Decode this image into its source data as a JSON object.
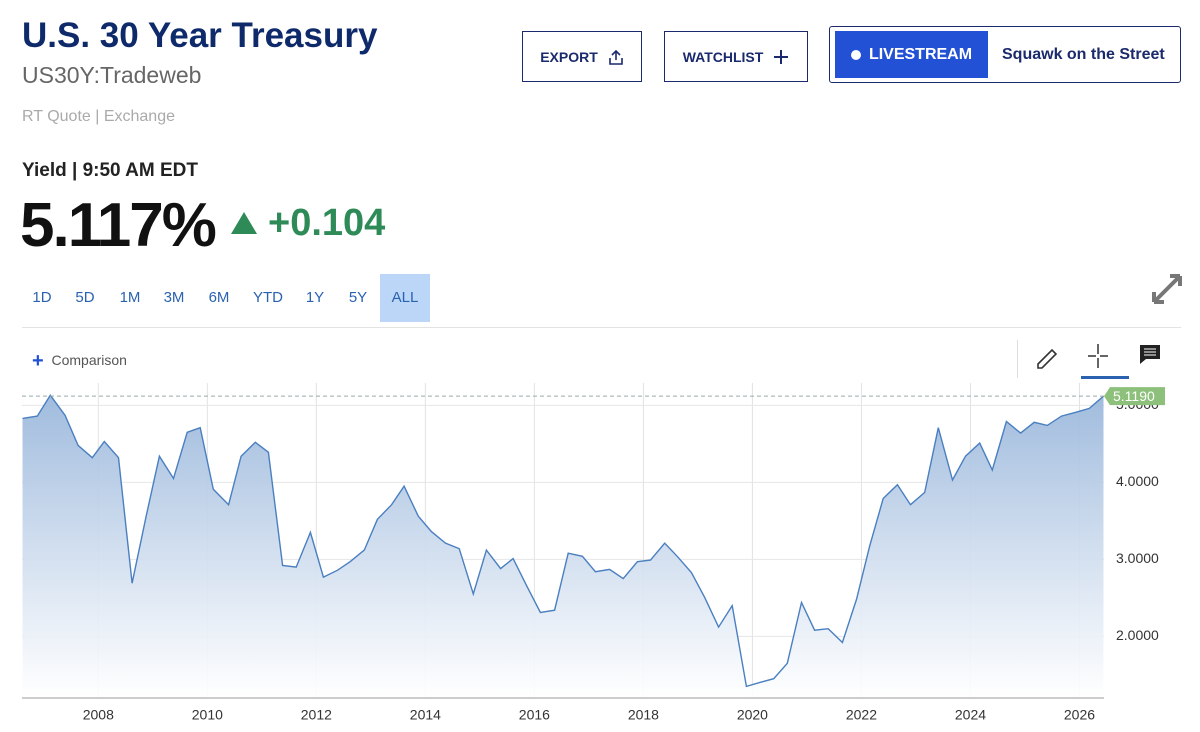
{
  "header": {
    "title": "U.S. 30 Year Treasury",
    "symbol": "US30Y:Tradeweb",
    "quote_type": "RT Quote | Exchange",
    "yield_label": "Yield | 9:50 AM EDT",
    "price": "5.117%",
    "change": "+0.104"
  },
  "buttons": {
    "export": "EXPORT",
    "watchlist": "WATCHLIST",
    "livestream": "LIVESTREAM",
    "squawk": "Squawk on the Street"
  },
  "ranges": [
    "1D",
    "5D",
    "1M",
    "3M",
    "6M",
    "YTD",
    "1Y",
    "5Y",
    "ALL"
  ],
  "selected_range": "ALL",
  "comparison": "Comparison",
  "chart_data": {
    "type": "area",
    "color": "#4a7fc0",
    "grid": true,
    "x": [
      2006.61,
      2006.88,
      2007.12,
      2007.39,
      2007.63,
      2007.89,
      2008.11,
      2008.37,
      2008.62,
      2008.88,
      2009.12,
      2009.38,
      2009.63,
      2009.87,
      2010.11,
      2010.39,
      2010.62,
      2010.88,
      2011.12,
      2011.38,
      2011.63,
      2011.89,
      2012.13,
      2012.39,
      2012.62,
      2012.88,
      2013.12,
      2013.38,
      2013.61,
      2013.87,
      2014.11,
      2014.37,
      2014.62,
      2014.88,
      2015.12,
      2015.38,
      2015.61,
      2015.87,
      2016.11,
      2016.37,
      2016.62,
      2016.88,
      2017.12,
      2017.38,
      2017.63,
      2017.89,
      2018.13,
      2018.39,
      2018.62,
      2018.88,
      2019.12,
      2019.38,
      2019.63,
      2019.89,
      2020.13,
      2020.39,
      2020.64,
      2020.9,
      2021.14,
      2021.39,
      2021.65,
      2021.91,
      2022.15,
      2022.4,
      2022.66,
      2022.9,
      2023.16,
      2023.41,
      2023.67,
      2023.91,
      2024.17,
      2024.4,
      2024.66,
      2024.92,
      2025.17,
      2025.41,
      2025.67,
      2025.93,
      2026.18,
      2026.44
    ],
    "values": [
      4.83,
      4.86,
      5.13,
      4.87,
      4.48,
      4.32,
      4.53,
      4.32,
      2.69,
      3.57,
      4.34,
      4.05,
      4.65,
      4.71,
      3.91,
      3.71,
      4.34,
      4.52,
      4.39,
      2.92,
      2.9,
      3.35,
      2.77,
      2.86,
      2.97,
      3.12,
      3.52,
      3.71,
      3.95,
      3.56,
      3.36,
      3.21,
      3.14,
      2.55,
      3.12,
      2.88,
      3.01,
      2.64,
      2.31,
      2.34,
      3.08,
      3.04,
      2.84,
      2.87,
      2.75,
      2.97,
      2.99,
      3.21,
      3.04,
      2.83,
      2.51,
      2.12,
      2.4,
      1.35,
      1.4,
      1.45,
      1.65,
      2.44,
      2.08,
      2.1,
      1.92,
      2.48,
      3.17,
      3.79,
      3.97,
      3.71,
      3.87,
      4.71,
      4.03,
      4.34,
      4.51,
      4.16,
      4.79,
      4.64,
      4.78,
      4.74,
      4.86,
      4.91,
      4.96,
      5.119
    ],
    "last_label": "5.1190",
    "xlim": [
      2006.6,
      2026.45
    ],
    "xticks": [
      2008,
      2010,
      2012,
      2014,
      2016,
      2018,
      2020,
      2022,
      2024,
      2026
    ],
    "ylim": [
      1.2,
      5.29
    ],
    "yticks": [
      {
        "value": 2,
        "label": "2.0000"
      },
      {
        "value": 3,
        "label": "3.0000"
      },
      {
        "value": 4,
        "label": "4.0000"
      },
      {
        "value": 5,
        "label": "5.0000"
      }
    ]
  }
}
